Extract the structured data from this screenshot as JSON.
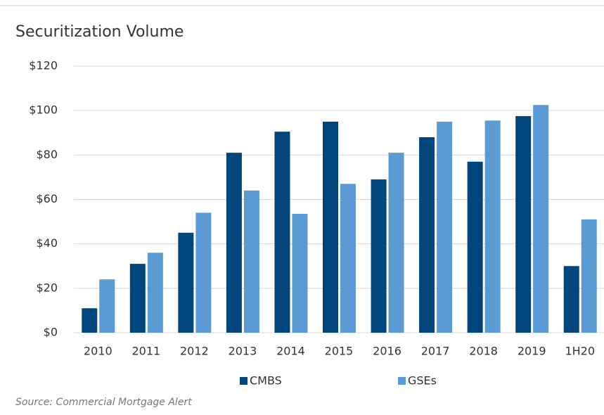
{
  "chart_data": {
    "type": "bar",
    "title": "Securitization Volume",
    "categories": [
      "2010",
      "2011",
      "2012",
      "2013",
      "2014",
      "2015",
      "2016",
      "2017",
      "2018",
      "2019",
      "1H20"
    ],
    "series": [
      {
        "name": "CMBS",
        "color": "#00457c",
        "values": [
          11,
          31,
          45,
          81,
          90.5,
          95,
          69,
          88,
          77,
          97.5,
          30
        ]
      },
      {
        "name": "GSEs",
        "color": "#5b9bd5",
        "values": [
          24,
          36,
          54,
          64,
          53.5,
          67,
          81,
          95,
          95.5,
          102.5,
          51
        ]
      }
    ],
    "ylim": [
      0,
      120
    ],
    "yticks": [
      {
        "value": 0,
        "label": "$0"
      },
      {
        "value": 20,
        "label": "$20"
      },
      {
        "value": 40,
        "label": "$40"
      },
      {
        "value": 60,
        "label": "$60"
      },
      {
        "value": 80,
        "label": "$80"
      },
      {
        "value": 100,
        "label": "$100"
      },
      {
        "value": 120,
        "label": "$120"
      }
    ],
    "grid": true,
    "legend": "bottom",
    "note": "Source: Commercial Mortgage Alert"
  }
}
